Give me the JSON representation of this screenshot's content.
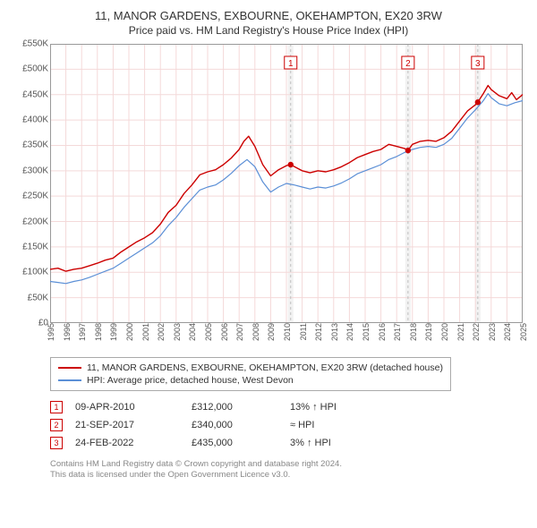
{
  "title_line1": "11, MANOR GARDENS, EXBOURNE, OKEHAMPTON, EX20 3RW",
  "title_line2": "Price paid vs. HM Land Registry's House Price Index (HPI)",
  "chart": {
    "type": "line",
    "background_color": "#ffffff",
    "grid_color": "#f4d9d9",
    "axis_color": "#999999",
    "x_years": [
      1995,
      1996,
      1997,
      1998,
      1999,
      2000,
      2001,
      2002,
      2003,
      2004,
      2005,
      2006,
      2007,
      2008,
      2009,
      2010,
      2011,
      2012,
      2013,
      2014,
      2015,
      2016,
      2017,
      2018,
      2019,
      2020,
      2021,
      2022,
      2023,
      2024,
      2025
    ],
    "ylim": [
      0,
      550000
    ],
    "ytick_step": 50000,
    "ytick_labels": [
      "£0",
      "£50K",
      "£100K",
      "£150K",
      "£200K",
      "£250K",
      "£300K",
      "£350K",
      "£400K",
      "£450K",
      "£500K",
      "£550K"
    ],
    "series": [
      {
        "id": "subject",
        "label": "11, MANOR GARDENS, EXBOURNE, OKEHAMPTON, EX20 3RW (detached house)",
        "color": "#cc0000",
        "width": 1.4,
        "data": [
          [
            1995.0,
            106000
          ],
          [
            1995.5,
            108000
          ],
          [
            1996.0,
            102000
          ],
          [
            1996.5,
            106000
          ],
          [
            1997.0,
            108000
          ],
          [
            1997.5,
            113000
          ],
          [
            1998.0,
            118000
          ],
          [
            1998.5,
            124000
          ],
          [
            1999.0,
            128000
          ],
          [
            1999.5,
            140000
          ],
          [
            2000.0,
            150000
          ],
          [
            2000.5,
            160000
          ],
          [
            2001.0,
            168000
          ],
          [
            2001.5,
            178000
          ],
          [
            2002.0,
            195000
          ],
          [
            2002.5,
            218000
          ],
          [
            2003.0,
            232000
          ],
          [
            2003.5,
            255000
          ],
          [
            2004.0,
            272000
          ],
          [
            2004.5,
            292000
          ],
          [
            2005.0,
            298000
          ],
          [
            2005.5,
            302000
          ],
          [
            2006.0,
            312000
          ],
          [
            2006.5,
            325000
          ],
          [
            2007.0,
            342000
          ],
          [
            2007.3,
            358000
          ],
          [
            2007.6,
            368000
          ],
          [
            2008.0,
            348000
          ],
          [
            2008.5,
            312000
          ],
          [
            2009.0,
            290000
          ],
          [
            2009.5,
            302000
          ],
          [
            2010.0,
            310000
          ],
          [
            2010.27,
            312000
          ],
          [
            2010.7,
            305000
          ],
          [
            2011.0,
            300000
          ],
          [
            2011.5,
            296000
          ],
          [
            2012.0,
            300000
          ],
          [
            2012.5,
            298000
          ],
          [
            2013.0,
            302000
          ],
          [
            2013.5,
            308000
          ],
          [
            2014.0,
            316000
          ],
          [
            2014.5,
            326000
          ],
          [
            2015.0,
            332000
          ],
          [
            2015.5,
            338000
          ],
          [
            2016.0,
            342000
          ],
          [
            2016.5,
            352000
          ],
          [
            2017.0,
            348000
          ],
          [
            2017.5,
            344000
          ],
          [
            2017.72,
            340000
          ],
          [
            2018.0,
            352000
          ],
          [
            2018.5,
            358000
          ],
          [
            2019.0,
            360000
          ],
          [
            2019.5,
            358000
          ],
          [
            2020.0,
            365000
          ],
          [
            2020.5,
            378000
          ],
          [
            2021.0,
            398000
          ],
          [
            2021.5,
            418000
          ],
          [
            2022.0,
            430000
          ],
          [
            2022.15,
            435000
          ],
          [
            2022.5,
            452000
          ],
          [
            2022.8,
            468000
          ],
          [
            2023.0,
            460000
          ],
          [
            2023.5,
            448000
          ],
          [
            2024.0,
            442000
          ],
          [
            2024.3,
            454000
          ],
          [
            2024.6,
            440000
          ],
          [
            2025.0,
            450000
          ]
        ]
      },
      {
        "id": "hpi",
        "label": "HPI: Average price, detached house, West Devon",
        "color": "#5b8fd6",
        "width": 1.2,
        "data": [
          [
            1995.0,
            82000
          ],
          [
            1995.5,
            80000
          ],
          [
            1996.0,
            78000
          ],
          [
            1996.5,
            82000
          ],
          [
            1997.0,
            85000
          ],
          [
            1997.5,
            90000
          ],
          [
            1998.0,
            96000
          ],
          [
            1998.5,
            102000
          ],
          [
            1999.0,
            108000
          ],
          [
            1999.5,
            118000
          ],
          [
            2000.0,
            128000
          ],
          [
            2000.5,
            138000
          ],
          [
            2001.0,
            148000
          ],
          [
            2001.5,
            158000
          ],
          [
            2002.0,
            172000
          ],
          [
            2002.5,
            192000
          ],
          [
            2003.0,
            208000
          ],
          [
            2003.5,
            228000
          ],
          [
            2004.0,
            245000
          ],
          [
            2004.5,
            262000
          ],
          [
            2005.0,
            268000
          ],
          [
            2005.5,
            272000
          ],
          [
            2006.0,
            282000
          ],
          [
            2006.5,
            295000
          ],
          [
            2007.0,
            310000
          ],
          [
            2007.5,
            322000
          ],
          [
            2008.0,
            308000
          ],
          [
            2008.5,
            278000
          ],
          [
            2009.0,
            258000
          ],
          [
            2009.5,
            268000
          ],
          [
            2010.0,
            275000
          ],
          [
            2010.5,
            272000
          ],
          [
            2011.0,
            268000
          ],
          [
            2011.5,
            264000
          ],
          [
            2012.0,
            268000
          ],
          [
            2012.5,
            266000
          ],
          [
            2013.0,
            270000
          ],
          [
            2013.5,
            276000
          ],
          [
            2014.0,
            284000
          ],
          [
            2014.5,
            294000
          ],
          [
            2015.0,
            300000
          ],
          [
            2015.5,
            306000
          ],
          [
            2016.0,
            312000
          ],
          [
            2016.5,
            322000
          ],
          [
            2017.0,
            328000
          ],
          [
            2017.5,
            336000
          ],
          [
            2018.0,
            342000
          ],
          [
            2018.5,
            346000
          ],
          [
            2019.0,
            348000
          ],
          [
            2019.5,
            346000
          ],
          [
            2020.0,
            352000
          ],
          [
            2020.5,
            364000
          ],
          [
            2021.0,
            384000
          ],
          [
            2021.5,
            404000
          ],
          [
            2022.0,
            420000
          ],
          [
            2022.5,
            438000
          ],
          [
            2022.8,
            452000
          ],
          [
            2023.0,
            444000
          ],
          [
            2023.5,
            432000
          ],
          [
            2024.0,
            428000
          ],
          [
            2024.5,
            434000
          ],
          [
            2025.0,
            438000
          ]
        ]
      }
    ],
    "event_markers": [
      {
        "n": "1",
        "x": 2010.27,
        "y": 312000,
        "color": "#cc0000"
      },
      {
        "n": "2",
        "x": 2017.72,
        "y": 340000,
        "color": "#cc0000"
      },
      {
        "n": "3",
        "x": 2022.15,
        "y": 435000,
        "color": "#cc0000"
      }
    ],
    "event_band_color": "#f2f2f2",
    "event_band_width_years": 0.35,
    "event_line_color": "#bfbfbf",
    "point_marker_color": "#cc0000",
    "point_marker_radius": 3.2,
    "label_box_fill": "#ffffff",
    "label_box_stroke": "#cc0000",
    "label_font_size": 10,
    "label_top_offset": 14
  },
  "legend_items": [
    {
      "color": "#cc0000",
      "label": "11, MANOR GARDENS, EXBOURNE, OKEHAMPTON, EX20 3RW (detached house)"
    },
    {
      "color": "#5b8fd6",
      "label": "HPI: Average price, detached house, West Devon"
    }
  ],
  "events_table": [
    {
      "n": "1",
      "date": "09-APR-2010",
      "price": "£312,000",
      "delta": "13% ↑ HPI",
      "color": "#cc0000"
    },
    {
      "n": "2",
      "date": "21-SEP-2017",
      "price": "£340,000",
      "delta": "≈ HPI",
      "color": "#cc0000"
    },
    {
      "n": "3",
      "date": "24-FEB-2022",
      "price": "£435,000",
      "delta": "3% ↑ HPI",
      "color": "#cc0000"
    }
  ],
  "attribution_line1": "Contains HM Land Registry data © Crown copyright and database right 2024.",
  "attribution_line2": "This data is licensed under the Open Government Licence v3.0."
}
